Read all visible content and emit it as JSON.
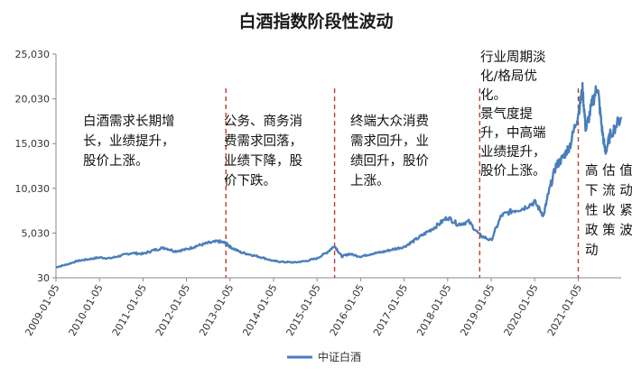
{
  "chart_data": {
    "type": "line",
    "title": "白酒指数阶段性波动",
    "xlabel": "",
    "ylabel": "",
    "ylim": [
      30,
      25030
    ],
    "y_ticks": [
      "30",
      "5,030",
      "10,030",
      "15,030",
      "20,030",
      "25,030"
    ],
    "y_tick_values": [
      30,
      5030,
      10030,
      15030,
      20030,
      25030
    ],
    "x_ticks": [
      "2009-01-05",
      "2010-01-05",
      "2011-01-05",
      "2012-01-05",
      "2013-01-05",
      "2014-01-05",
      "2015-01-05",
      "2016-01-05",
      "2017-01-05",
      "2018-01-05",
      "2019-01-05",
      "2020-01-05",
      "2021-01-05"
    ],
    "grid": false,
    "legend_position": "bottom",
    "series": [
      {
        "name": "中证白酒",
        "color": "#4a7ebb",
        "points": [
          [
            "2009-01-05",
            1200
          ],
          [
            "2009-04-01",
            1500
          ],
          [
            "2009-07-01",
            1900
          ],
          [
            "2009-10-01",
            2100
          ],
          [
            "2010-01-05",
            2300
          ],
          [
            "2010-04-01",
            2200
          ],
          [
            "2010-07-01",
            2500
          ],
          [
            "2010-10-01",
            2800
          ],
          [
            "2011-01-05",
            2700
          ],
          [
            "2011-04-01",
            3100
          ],
          [
            "2011-07-01",
            3400
          ],
          [
            "2011-10-01",
            3000
          ],
          [
            "2012-01-05",
            3200
          ],
          [
            "2012-04-01",
            3600
          ],
          [
            "2012-07-01",
            3900
          ],
          [
            "2012-10-01",
            4100
          ],
          [
            "2012-12-01",
            3900
          ],
          [
            "2013-01-05",
            3500
          ],
          [
            "2013-04-01",
            2900
          ],
          [
            "2013-07-01",
            2600
          ],
          [
            "2013-10-01",
            2300
          ],
          [
            "2014-01-05",
            1900
          ],
          [
            "2014-04-01",
            1800
          ],
          [
            "2014-07-01",
            1750
          ],
          [
            "2014-10-01",
            1900
          ],
          [
            "2015-01-05",
            2200
          ],
          [
            "2015-04-01",
            2900
          ],
          [
            "2015-06-01",
            3600
          ],
          [
            "2015-08-01",
            2400
          ],
          [
            "2015-10-01",
            2700
          ],
          [
            "2016-01-05",
            2400
          ],
          [
            "2016-04-01",
            2700
          ],
          [
            "2016-07-01",
            2900
          ],
          [
            "2016-10-01",
            3200
          ],
          [
            "2017-01-05",
            3500
          ],
          [
            "2017-04-01",
            4200
          ],
          [
            "2017-07-01",
            5000
          ],
          [
            "2017-10-01",
            5800
          ],
          [
            "2018-01-05",
            6800
          ],
          [
            "2018-04-01",
            6000
          ],
          [
            "2018-07-01",
            6300
          ],
          [
            "2018-10-01",
            4800
          ],
          [
            "2019-01-05",
            4200
          ],
          [
            "2019-04-01",
            7000
          ],
          [
            "2019-07-01",
            7500
          ],
          [
            "2019-10-01",
            7800
          ],
          [
            "2020-01-05",
            8500
          ],
          [
            "2020-03-20",
            7000
          ],
          [
            "2020-05-01",
            9500
          ],
          [
            "2020-07-01",
            12500
          ],
          [
            "2020-09-01",
            13500
          ],
          [
            "2020-11-01",
            15000
          ],
          [
            "2021-01-05",
            18500
          ],
          [
            "2021-02-10",
            21000
          ],
          [
            "2021-03-10",
            16500
          ],
          [
            "2021-05-01",
            19500
          ],
          [
            "2021-06-15",
            21500
          ],
          [
            "2021-07-20",
            17000
          ],
          [
            "2021-08-20",
            14000
          ],
          [
            "2021-10-01",
            16000
          ],
          [
            "2021-12-31",
            18000
          ]
        ]
      }
    ],
    "dividers": [
      "2012-12-01",
      "2015-06-01",
      "2018-10-01",
      "2021-01-05"
    ],
    "annotations": [
      {
        "lines": [
          "白酒需求长期增",
          "长，业绩提升，",
          "股价上涨。"
        ]
      },
      {
        "lines": [
          "公务、商务消",
          "费需求回落，",
          "业绩下降，股",
          "价下跌。"
        ]
      },
      {
        "lines": [
          "终端大众消费",
          "需求回升，业",
          "绩回升，股价",
          "上涨。"
        ]
      },
      {
        "lines": [
          "行业周期淡",
          "化/格局优",
          "化。",
          "景气度提",
          "升，中高端",
          "业绩提升，",
          "股价上涨。"
        ]
      },
      {
        "lines": [
          "高 估 值",
          "下 流 动",
          "性 收 紧、",
          "政 策 波",
          "动"
        ]
      }
    ]
  }
}
